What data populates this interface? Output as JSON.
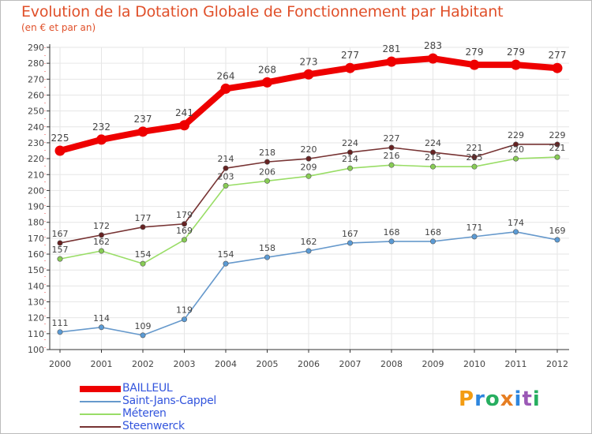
{
  "title": "Evolution de la Dotation Globale de Fonctionnement par Habitant",
  "subtitle": "(en € et par an)",
  "brand": {
    "letters": [
      "P",
      "r",
      "o",
      "x",
      "i",
      "t",
      "i"
    ],
    "colors": [
      "#f39c12",
      "#2e86de",
      "#27ae60",
      "#e67e22",
      "#2e86de",
      "#9b59b6",
      "#27ae60"
    ]
  },
  "colors": {
    "axis": "#333333",
    "grid": "#e6e6e6",
    "label": "#444444"
  },
  "chart_data": {
    "type": "line",
    "title": "Evolution de la Dotation Globale de Fonctionnement par Habitant",
    "subtitle": "(en € et par an)",
    "xlabel": "",
    "ylabel": "",
    "x": [
      "2000",
      "2001",
      "2002",
      "2003",
      "2004",
      "2005",
      "2006",
      "2007",
      "2008",
      "2009",
      "2010",
      "2011",
      "2012"
    ],
    "ylim": [
      100,
      290
    ],
    "yticks": [
      "100",
      "110",
      "120",
      "130",
      "140",
      "150",
      "160",
      "170",
      "180",
      "190",
      "200",
      "210",
      "220",
      "230",
      "240",
      "250",
      "260",
      "270",
      "280",
      "290"
    ],
    "grid": true,
    "legend_position": "bottom-left",
    "series": [
      {
        "name": "BAILLEUL",
        "color": "#ee0000",
        "dot": "#ee0000",
        "width": "bold",
        "values": [
          225,
          232,
          237,
          241,
          264,
          268,
          273,
          277,
          281,
          283,
          279,
          279,
          277
        ]
      },
      {
        "name": "Saint-Jans-Cappel",
        "color": "#6699cc",
        "dot": "#5b9bd5",
        "width": "thin",
        "values": [
          111,
          114,
          109,
          119,
          154,
          158,
          162,
          167,
          168,
          168,
          171,
          174,
          169
        ]
      },
      {
        "name": "Méteren",
        "color": "#99dd66",
        "dot": "#88cc55",
        "width": "thin",
        "values": [
          157,
          162,
          154,
          169,
          203,
          206,
          209,
          214,
          216,
          215,
          215,
          220,
          221
        ]
      },
      {
        "name": "Steenwerck",
        "color": "#773333",
        "dot": "#662222",
        "width": "thin",
        "values": [
          167,
          172,
          177,
          179,
          214,
          218,
          220,
          224,
          227,
          224,
          221,
          229,
          229
        ]
      }
    ]
  }
}
